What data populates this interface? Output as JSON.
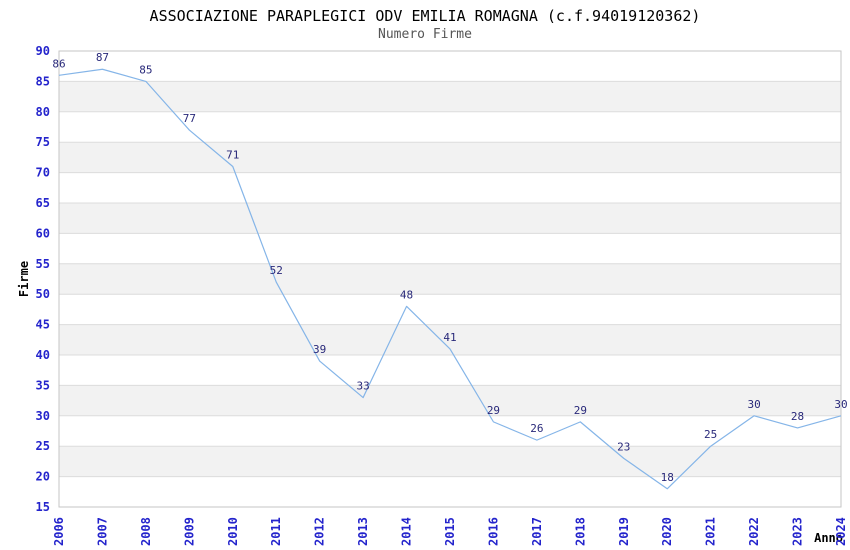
{
  "title": "ASSOCIAZIONE PARAPLEGICI ODV EMILIA ROMAGNA (c.f.94019120362)",
  "subtitle": "Numero Firme",
  "chart_data": {
    "type": "line",
    "title": "ASSOCIAZIONE PARAPLEGICI ODV EMILIA ROMAGNA (c.f.94019120362)",
    "subtitle": "Numero Firme",
    "xlabel": "Anno",
    "ylabel": "Firme",
    "x": [
      2006,
      2007,
      2008,
      2009,
      2010,
      2011,
      2012,
      2013,
      2014,
      2015,
      2016,
      2017,
      2018,
      2019,
      2020,
      2021,
      2022,
      2023,
      2024
    ],
    "values": [
      86,
      87,
      85,
      77,
      71,
      52,
      39,
      33,
      48,
      41,
      29,
      26,
      29,
      23,
      18,
      25,
      30,
      28,
      30
    ],
    "ylim": [
      15,
      90
    ],
    "ytick_step": 5,
    "grid": true,
    "legend": "none",
    "colors": {
      "line": "#85b5e8",
      "tick_label": "#2424cc",
      "data_label": "#29297a",
      "band": "#f2f2f2",
      "grid": "#dcdcdc",
      "border": "#c6c6c6",
      "title": "#000000",
      "subtitle": "#555555"
    }
  }
}
